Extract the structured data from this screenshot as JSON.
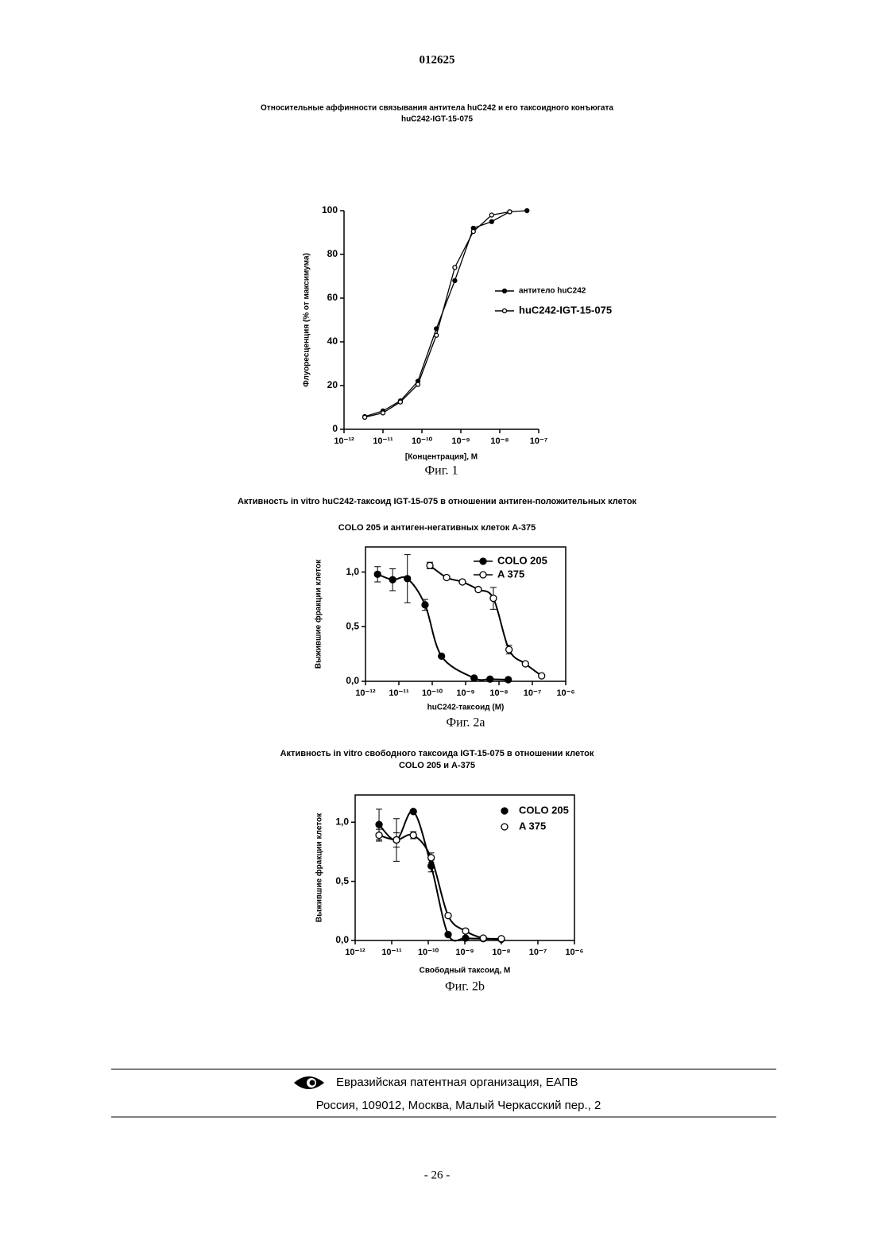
{
  "header": {
    "number": "012625"
  },
  "chart_data": [
    {
      "type": "line",
      "title": "Относительные аффинности связывания антитела huC242 и его таксоидного конъюгата",
      "subtitle": "huC242-IGT-15-075",
      "xlabel": "[Концентрация], М",
      "ylabel": "Флуоресценция (% от максимума)",
      "caption": "Фиг. 1",
      "log_x": true,
      "box": false,
      "legend_lines": true,
      "xlim": [
        1e-12,
        1e-07
      ],
      "xticks": [
        {
          "value": 1e-12,
          "label": "10⁻¹²"
        },
        {
          "value": 1e-11,
          "label": "10⁻¹¹"
        },
        {
          "value": 1e-10,
          "label": "10⁻¹⁰"
        },
        {
          "value": 1e-09,
          "label": "10⁻⁹"
        },
        {
          "value": 1e-08,
          "label": "10⁻⁸"
        },
        {
          "value": 1e-07,
          "label": "10⁻⁷"
        }
      ],
      "ylim": [
        0,
        100
      ],
      "yticks": [
        0,
        20,
        40,
        60,
        80,
        100
      ],
      "series": [
        {
          "name": "антитело huC242",
          "color": "#000000",
          "marker": "filled",
          "x": [
            3.4e-12,
            1e-11,
            2.8e-11,
            7.9e-11,
            2.35e-10,
            7e-10,
            2.1e-09,
            6.2e-09,
            1.8e-08,
            5e-08
          ],
          "values": [
            5.8,
            8.4,
            13,
            22,
            46,
            68,
            92,
            95,
            99.5,
            100
          ]
        },
        {
          "name": "huC242-IGT-15-075",
          "color": "#000000",
          "marker": "open",
          "x": [
            3.4e-12,
            1e-11,
            2.8e-11,
            7.9e-11,
            2.35e-10,
            7e-10,
            2.1e-09,
            6.2e-09,
            1.8e-08,
            null
          ],
          "values": [
            5.5,
            7.5,
            12.5,
            20.5,
            43,
            74,
            90.5,
            98,
            99.5,
            null
          ]
        }
      ]
    },
    {
      "type": "scatter",
      "title": "Активность in vitro huC242-таксоид IGT-15-075 в отношении антиген-положительных клеток",
      "subtitle": "COLO 205 и антиген-негативных клеток А-375",
      "xlabel": "huC242-таксоид (М)",
      "ylabel": "Выжившие фракции клеток",
      "caption": "Фиг. 2a",
      "log_x": true,
      "box": true,
      "legend_lines": true,
      "xlim": [
        1e-12,
        1e-06
      ],
      "xticks": [
        {
          "value": 1e-12,
          "label": "10⁻¹²"
        },
        {
          "value": 1e-11,
          "label": "10⁻¹¹"
        },
        {
          "value": 1e-10,
          "label": "10⁻¹⁰"
        },
        {
          "value": 1e-09,
          "label": "10⁻⁹"
        },
        {
          "value": 1e-08,
          "label": "10⁻⁸"
        },
        {
          "value": 1e-07,
          "label": "10⁻⁷"
        },
        {
          "value": 1e-06,
          "label": "10⁻⁶"
        }
      ],
      "ylim": [
        0,
        1.23
      ],
      "yticks": [
        {
          "value": 0,
          "label": "0,0"
        },
        {
          "value": 0.5,
          "label": "0,5"
        },
        {
          "value": 1,
          "label": "1,0"
        }
      ],
      "series": [
        {
          "name": "COLO 205",
          "color": "#000000",
          "marker": "filled",
          "x": [
            2.3e-12,
            6.5e-12,
            1.8e-11,
            6.1e-11,
            1.9e-10,
            1.8e-09,
            5.4e-09,
            1.9e-08
          ],
          "values": [
            0.98,
            0.93,
            0.94,
            0.7,
            0.23,
            0.03,
            0.02,
            0.015
          ],
          "errors": [
            0.07,
            0.1,
            0.22,
            0.05,
            null,
            null,
            null,
            null
          ]
        },
        {
          "name": "A 375",
          "color": "#000000",
          "marker": "open",
          "x": [
            8.5e-11,
            2.7e-10,
            8e-10,
            2.4e-09,
            6.8e-09,
            2e-08,
            6.2e-08,
            1.9e-07
          ],
          "values": [
            1.06,
            0.95,
            0.91,
            0.84,
            0.76,
            0.29,
            0.16,
            0.05
          ],
          "errors": [
            0.03,
            null,
            null,
            null,
            0.1,
            0.04,
            null,
            null
          ]
        }
      ]
    },
    {
      "type": "scatter",
      "title": "Активность in vitro свободного таксоида IGT-15-075 в отношении клеток",
      "subtitle": "COLO 205 и А-375",
      "xlabel": "Свободный таксоид, М",
      "ylabel": "Выжившие фракции клеток",
      "caption": "Фиг. 2b",
      "log_x": true,
      "box": true,
      "legend_lines": false,
      "xlim": [
        1e-12,
        1e-06
      ],
      "xticks": [
        {
          "value": 1e-12,
          "label": "10⁻¹²"
        },
        {
          "value": 1e-11,
          "label": "10⁻¹¹"
        },
        {
          "value": 1e-10,
          "label": "10⁻¹⁰"
        },
        {
          "value": 1e-09,
          "label": "10⁻⁹"
        },
        {
          "value": 1e-08,
          "label": "10⁻⁸"
        },
        {
          "value": 1e-07,
          "label": "10⁻⁷"
        },
        {
          "value": 1e-06,
          "label": "10⁻⁶"
        }
      ],
      "ylim": [
        0,
        1.23
      ],
      "yticks": [
        {
          "value": 0,
          "label": "0,0"
        },
        {
          "value": 0.5,
          "label": "0,5"
        },
        {
          "value": 1,
          "label": "1,0"
        }
      ],
      "series": [
        {
          "name": "COLO 205",
          "color": "#000000",
          "marker": "filled",
          "x": [
            4.5e-12,
            1.35e-11,
            3.9e-11,
            1.2e-10,
            3.5e-10,
            1.05e-09,
            3.2e-09,
            1e-08
          ],
          "values": [
            0.98,
            0.85,
            1.09,
            0.63,
            0.05,
            0.02,
            0.015,
            0.01
          ],
          "errors": [
            0.13,
            0.18,
            null,
            0.05,
            null,
            null,
            null,
            null
          ]
        },
        {
          "name": "A 375",
          "color": "#000000",
          "marker": "open",
          "x": [
            4.5e-12,
            1.35e-11,
            3.9e-11,
            1.2e-10,
            3.5e-10,
            1.05e-09,
            3.2e-09,
            1e-08
          ],
          "values": [
            0.89,
            0.85,
            0.89,
            0.7,
            0.21,
            0.08,
            0.02,
            0.015
          ],
          "errors": [
            0.05,
            0.06,
            0.03,
            0.04,
            null,
            null,
            null,
            null
          ]
        }
      ]
    }
  ],
  "footer": {
    "organization": "Евразийская патентная организация, ЕАПВ",
    "address": "Россия, 109012, Москва, Малый Черкасский пер., 2",
    "page": "- 26 -"
  }
}
